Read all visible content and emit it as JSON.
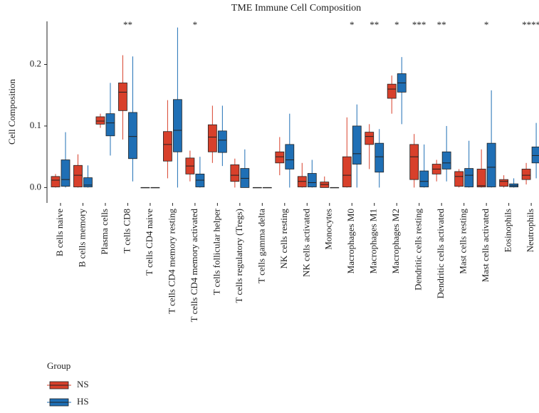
{
  "chart_data": {
    "type": "box",
    "title": "TME Immune Cell Composition",
    "y_label": "Cell Composition",
    "legend_title": "Group",
    "categories": [
      "B cells naive",
      "B cells memory",
      "Plasma cells",
      "T cells CD8",
      "T cells CD4 naive",
      "T cells CD4 memory resting",
      "T cells CD4 memory activated",
      "T cells follicular helper",
      "T cells regulatory (Tregs)",
      "T cells gamma delta",
      "NK cells resting",
      "NK cells activated",
      "Monocytes",
      "Macrophages M0",
      "Macrophages M1",
      "Macrophages M2",
      "Dendritic cells resting",
      "Dendritic cells activated",
      "Mast cells resting",
      "Mast cells activated",
      "Eosinophils",
      "Neutrophils"
    ],
    "significance": [
      null,
      null,
      null,
      "**",
      null,
      null,
      "*",
      null,
      null,
      null,
      null,
      null,
      null,
      "*",
      "**",
      "*",
      "***",
      "**",
      null,
      "*",
      null,
      "****"
    ],
    "series": [
      {
        "name": "NS",
        "color": "#d8402b",
        "min": [
          0,
          0,
          0.097,
          0.078,
          0,
          0.015,
          0.01,
          0.04,
          0,
          0,
          0.02,
          0,
          0,
          0,
          0.03,
          0.12,
          0,
          0.01,
          0,
          0,
          0,
          0.005
        ],
        "q1": [
          0.001,
          0.001,
          0.103,
          0.125,
          0,
          0.043,
          0.022,
          0.058,
          0.01,
          0,
          0.04,
          0.001,
          0,
          0.001,
          0.07,
          0.145,
          0.013,
          0.022,
          0.002,
          0.001,
          0.002,
          0.013
        ],
        "median": [
          0.012,
          0.02,
          0.108,
          0.155,
          0,
          0.07,
          0.035,
          0.082,
          0.02,
          0,
          0.05,
          0.01,
          0.005,
          0.02,
          0.083,
          0.16,
          0.05,
          0.03,
          0.018,
          0.003,
          0.01,
          0.02
        ],
        "q3": [
          0.018,
          0.036,
          0.115,
          0.17,
          0,
          0.091,
          0.048,
          0.102,
          0.037,
          0,
          0.058,
          0.018,
          0.009,
          0.05,
          0.09,
          0.168,
          0.07,
          0.038,
          0.026,
          0.03,
          0.013,
          0.03
        ],
        "max": [
          0.022,
          0.054,
          0.12,
          0.215,
          0,
          0.142,
          0.06,
          0.133,
          0.047,
          0,
          0.082,
          0.04,
          0.018,
          0.114,
          0.103,
          0.182,
          0.087,
          0.045,
          0.03,
          0.062,
          0.02,
          0.04
        ]
      },
      {
        "name": "HS",
        "color": "#1f6fb5",
        "min": [
          0,
          0,
          0.052,
          0.01,
          0,
          0,
          0,
          0.035,
          0,
          0,
          0,
          0,
          0,
          0,
          0,
          0.103,
          0,
          0.01,
          0,
          0,
          0,
          0.015
        ],
        "q1": [
          0.002,
          0.001,
          0.084,
          0.047,
          0,
          0.058,
          0.001,
          0.057,
          0,
          0,
          0.03,
          0.001,
          0,
          0.038,
          0.025,
          0.155,
          0.001,
          0.03,
          0.001,
          0.001,
          0.001,
          0.04
        ],
        "median": [
          0.013,
          0.004,
          0.105,
          0.083,
          0,
          0.093,
          0.012,
          0.077,
          0.015,
          0,
          0.045,
          0.008,
          0,
          0.055,
          0.05,
          0.17,
          0.01,
          0.04,
          0.02,
          0.033,
          0.003,
          0.052
        ],
        "q3": [
          0.045,
          0.016,
          0.12,
          0.122,
          0,
          0.143,
          0.022,
          0.092,
          0.031,
          0,
          0.07,
          0.023,
          0,
          0.1,
          0.072,
          0.185,
          0.027,
          0.058,
          0.031,
          0.072,
          0.006,
          0.066
        ],
        "max": [
          0.09,
          0.036,
          0.17,
          0.213,
          0,
          0.26,
          0.05,
          0.133,
          0.062,
          0,
          0.12,
          0.045,
          0,
          0.135,
          0.095,
          0.212,
          0.07,
          0.1,
          0.076,
          0.158,
          0.015,
          0.105
        ]
      }
    ],
    "ylim": [
      -0.025,
      0.27
    ],
    "yticks": [
      {
        "value": 0,
        "label": "0.0"
      },
      0.1,
      0.2
    ]
  }
}
